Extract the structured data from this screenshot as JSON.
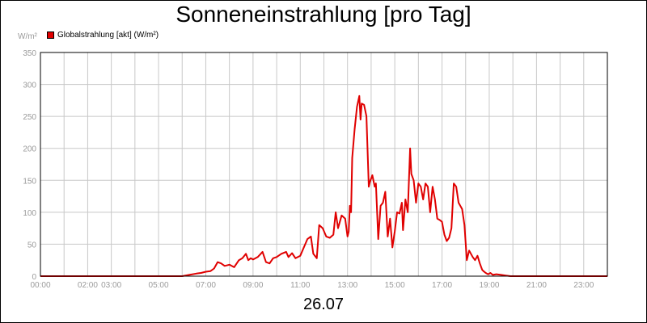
{
  "title": "Sonneneinstrahlung [pro Tag]",
  "date": "26.07",
  "y_unit": "W/m²",
  "legend": {
    "label": "Globalstrahlung [akt] (W/m²)"
  },
  "colors": {
    "series": "#e00000",
    "grid": "#c8c8c8",
    "tick_text": "#9a9a9a"
  },
  "chart_data": {
    "type": "line",
    "title": "Sonneneinstrahlung [pro Tag]",
    "xlabel": "26.07",
    "ylabel": "W/m²",
    "xlim": [
      0,
      24
    ],
    "ylim": [
      0,
      350
    ],
    "grid": true,
    "legend_position": "top-left",
    "x_ticks": [
      0,
      2,
      3,
      5,
      7,
      9,
      11,
      13,
      15,
      17,
      19,
      21,
      23
    ],
    "x_tick_labels": [
      "00:00",
      "02:00",
      "03:00",
      "05:00",
      "07:00",
      "09:00",
      "11:00",
      "13:00",
      "15:00",
      "17:00",
      "19:00",
      "21:00",
      "23:00"
    ],
    "y_ticks": [
      0,
      50,
      100,
      150,
      200,
      250,
      300,
      350
    ],
    "series": [
      {
        "name": "Globalstrahlung [akt] (W/m²)",
        "x": [
          0.0,
          6.0,
          6.3,
          6.6,
          6.8,
          7.0,
          7.2,
          7.35,
          7.5,
          7.65,
          7.8,
          8.0,
          8.2,
          8.4,
          8.55,
          8.7,
          8.8,
          8.9,
          9.0,
          9.2,
          9.4,
          9.55,
          9.7,
          9.85,
          10.0,
          10.2,
          10.4,
          10.5,
          10.65,
          10.8,
          11.0,
          11.15,
          11.3,
          11.45,
          11.55,
          11.7,
          11.8,
          11.95,
          12.1,
          12.25,
          12.4,
          12.5,
          12.6,
          12.75,
          12.9,
          13.0,
          13.05,
          13.1,
          13.15,
          13.2,
          13.3,
          13.4,
          13.5,
          13.55,
          13.6,
          13.7,
          13.8,
          13.9,
          13.95,
          14.05,
          14.15,
          14.2,
          14.3,
          14.4,
          14.5,
          14.6,
          14.7,
          14.8,
          14.9,
          15.0,
          15.1,
          15.2,
          15.3,
          15.35,
          15.45,
          15.55,
          15.65,
          15.7,
          15.8,
          15.9,
          16.0,
          16.1,
          16.2,
          16.3,
          16.4,
          16.5,
          16.6,
          16.7,
          16.8,
          16.9,
          17.0,
          17.1,
          17.2,
          17.3,
          17.4,
          17.5,
          17.6,
          17.7,
          17.85,
          17.95,
          18.05,
          18.15,
          18.3,
          18.4,
          18.5,
          18.6,
          18.7,
          18.75,
          18.85,
          18.95,
          19.05,
          19.15,
          19.3,
          19.5,
          19.7,
          19.9,
          20.1,
          20.3,
          20.5,
          20.7,
          20.9,
          21.0,
          24.0
        ],
        "y": [
          0,
          0,
          2,
          4,
          5,
          7,
          8,
          12,
          22,
          20,
          16,
          18,
          14,
          25,
          28,
          35,
          25,
          28,
          26,
          30,
          38,
          22,
          20,
          28,
          30,
          35,
          38,
          30,
          36,
          28,
          32,
          45,
          58,
          62,
          35,
          28,
          80,
          75,
          62,
          60,
          65,
          100,
          75,
          95,
          90,
          62,
          70,
          110,
          100,
          185,
          230,
          265,
          282,
          245,
          270,
          268,
          250,
          140,
          148,
          158,
          140,
          145,
          58,
          110,
          115,
          132,
          62,
          90,
          45,
          70,
          100,
          98,
          115,
          72,
          120,
          100,
          200,
          160,
          150,
          115,
          145,
          140,
          120,
          145,
          140,
          100,
          140,
          120,
          90,
          88,
          85,
          65,
          55,
          60,
          75,
          145,
          140,
          115,
          105,
          80,
          25,
          40,
          30,
          25,
          32,
          20,
          10,
          8,
          5,
          3,
          5,
          2,
          3,
          2,
          1,
          0,
          0,
          0,
          0,
          0,
          0,
          0,
          0
        ]
      }
    ]
  }
}
